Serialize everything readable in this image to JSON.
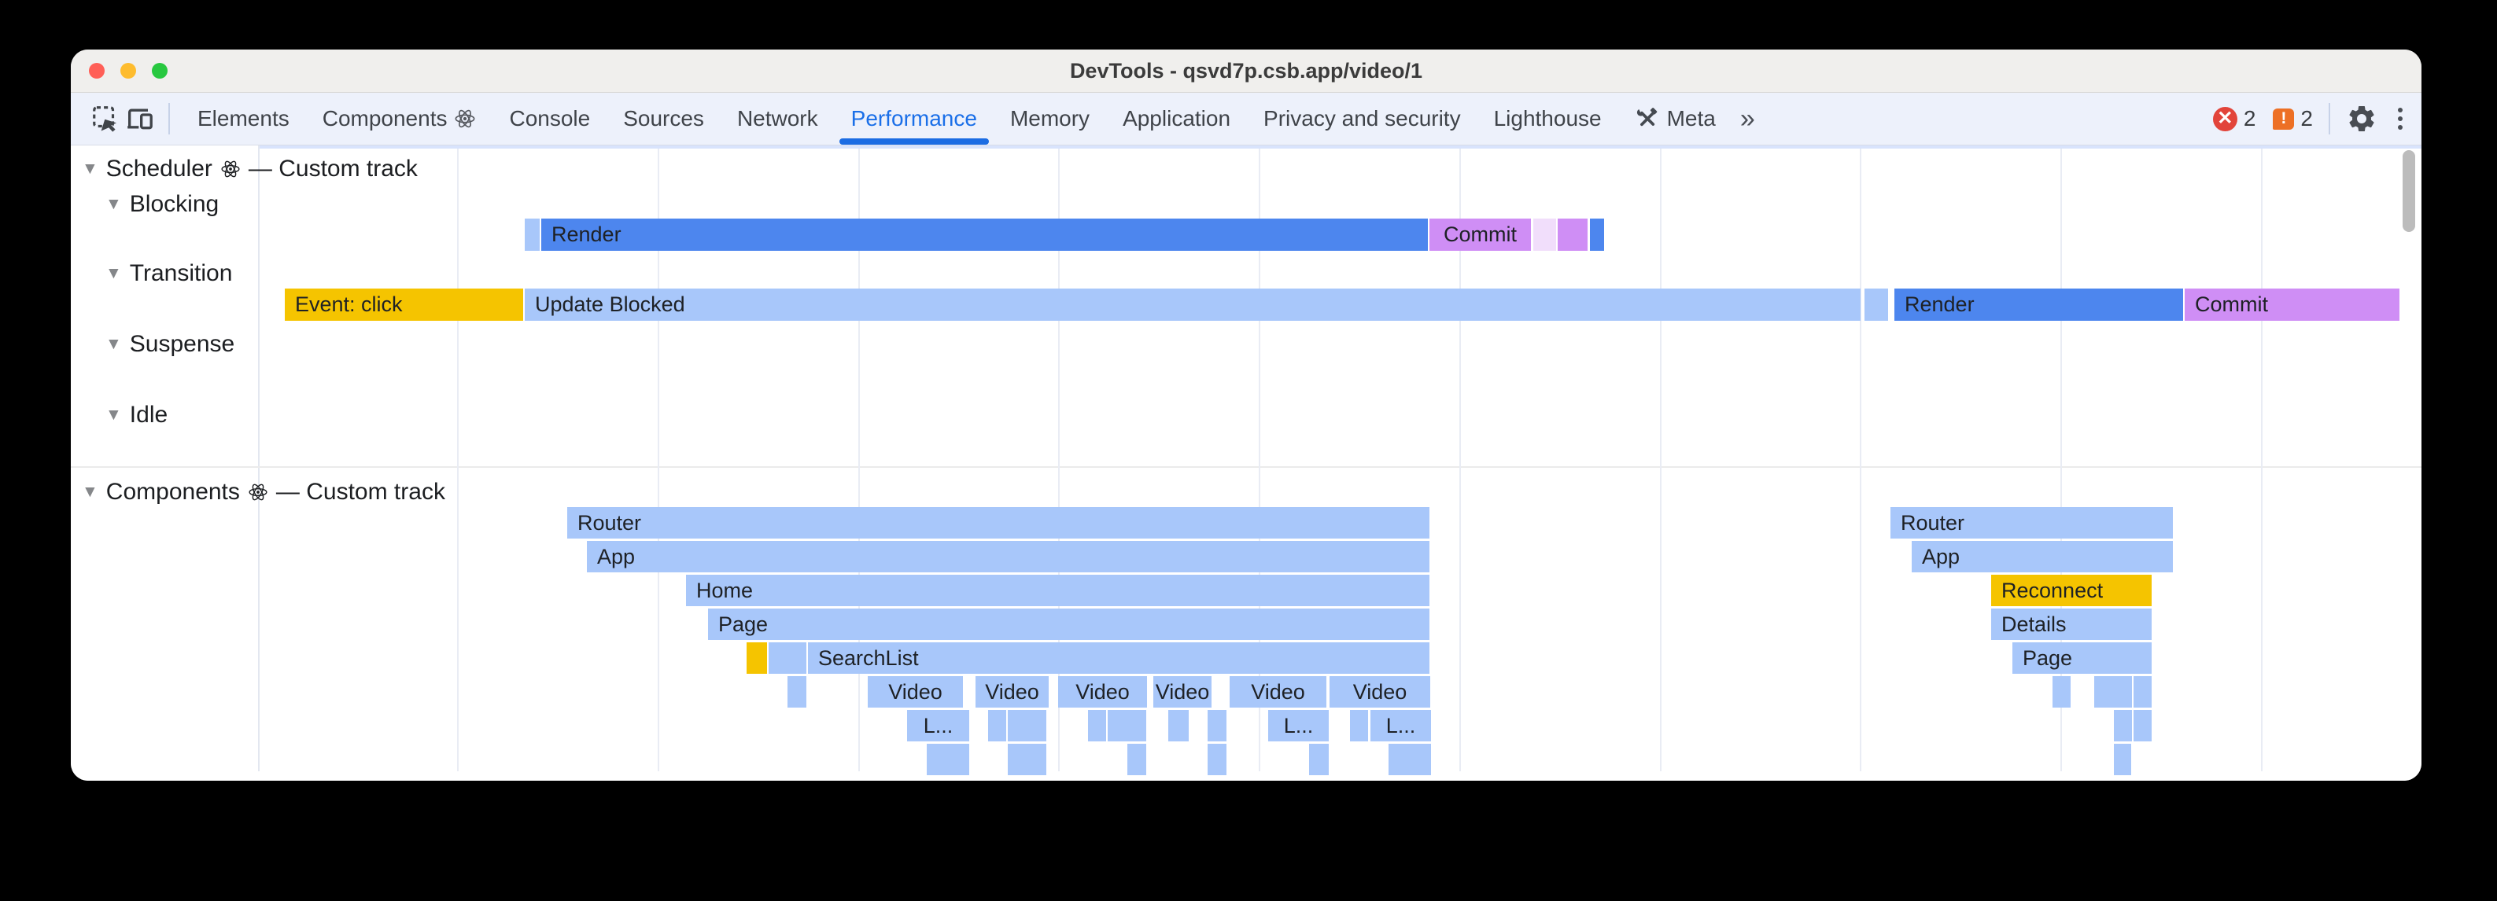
{
  "window": {
    "title": "DevTools - qsvd7p.csb.app/video/1"
  },
  "traffic_lights": {
    "close": "#ff5f57",
    "minimize": "#febc2e",
    "zoom": "#28c840"
  },
  "tabbar": {
    "tabs": [
      {
        "label": "Elements"
      },
      {
        "label": "Components",
        "atom": true
      },
      {
        "label": "Console"
      },
      {
        "label": "Sources"
      },
      {
        "label": "Network"
      },
      {
        "label": "Performance",
        "active": true
      },
      {
        "label": "Memory"
      },
      {
        "label": "Application"
      },
      {
        "label": "Privacy and security"
      },
      {
        "label": "Lighthouse"
      },
      {
        "label": "Meta",
        "tools_icon": true
      }
    ],
    "overflow_chevron": "»",
    "error_count": "2",
    "warning_count": "2"
  },
  "tracks": {
    "scheduler": {
      "triangle": "▼",
      "label": "Scheduler",
      "suffix": "— Custom track"
    },
    "scheduler_groups": [
      {
        "triangle": "▼",
        "label": "Blocking"
      },
      {
        "triangle": "▼",
        "label": "Transition"
      },
      {
        "triangle": "▼",
        "label": "Suspense"
      },
      {
        "triangle": "▼",
        "label": "Idle"
      }
    ],
    "components": {
      "triangle": "▼",
      "label": "Components",
      "suffix": "— Custom track"
    }
  },
  "palette": {
    "lightblue": "#a8c7fa",
    "blue": "#4d86ee",
    "yellow": "#f5c400",
    "violet": "#cf8ef5",
    "paleviolet": "#f1defb",
    "active_tab": "#1a6fe8",
    "error_red": "#e2443a",
    "warning_orange": "#ed7025"
  },
  "flame": {
    "gridlines": [
      491,
      746,
      1001,
      1255,
      1510,
      1765,
      2020,
      2274,
      2529,
      2784
    ],
    "bars": [
      [
        "b",
        577,
        19,
        "lightblue",
        ""
      ],
      [
        "b",
        598,
        1127,
        "blue",
        "Render"
      ],
      [
        "b",
        1727,
        129,
        "violet",
        "Commit"
      ],
      [
        "b",
        1859,
        29,
        "paleviolet",
        ""
      ],
      [
        "b",
        1890,
        38,
        "violet",
        ""
      ],
      [
        "b",
        1931,
        18,
        "blue",
        ""
      ],
      [
        "t",
        272,
        303,
        "yellow",
        "Event: click"
      ],
      [
        "t",
        577,
        1698,
        "lightblue",
        "Update Blocked"
      ],
      [
        "t",
        2280,
        30,
        "lightblue",
        ""
      ],
      [
        "t",
        2318,
        367,
        "blue",
        "Render"
      ],
      [
        "t",
        2687,
        273,
        "violet",
        "Commit"
      ],
      [
        "c1",
        631,
        1096,
        "lightblue",
        "Router"
      ],
      [
        "c1",
        2313,
        359,
        "lightblue",
        "Router"
      ],
      [
        "c2",
        656,
        1071,
        "lightblue",
        "App"
      ],
      [
        "c2",
        2340,
        332,
        "lightblue",
        "App"
      ],
      [
        "c3",
        782,
        945,
        "lightblue",
        "Home"
      ],
      [
        "c3",
        2441,
        204,
        "yellow",
        "Reconnect"
      ],
      [
        "c4",
        810,
        917,
        "lightblue",
        "Page"
      ],
      [
        "c4",
        2441,
        204,
        "lightblue",
        "Details"
      ],
      [
        "c5",
        859,
        26,
        "yellow",
        ""
      ],
      [
        "c5",
        887,
        48,
        "lightblue",
        ""
      ],
      [
        "c5",
        937,
        790,
        "lightblue",
        "SearchList"
      ],
      [
        "c5",
        2468,
        177,
        "lightblue",
        "Page"
      ],
      [
        "c6",
        911,
        24,
        "lightblue",
        ""
      ],
      [
        "c6",
        1013,
        121,
        "lightblue",
        "Video"
      ],
      [
        "c6",
        1150,
        93,
        "lightblue",
        "Video"
      ],
      [
        "c6",
        1255,
        113,
        "lightblue",
        "Video"
      ],
      [
        "c6",
        1376,
        74,
        "lightblue",
        "Video"
      ],
      [
        "c6",
        1473,
        123,
        "lightblue",
        "Video"
      ],
      [
        "c6",
        1600,
        128,
        "lightblue",
        "Video"
      ],
      [
        "c6",
        2519,
        23,
        "lightblue",
        ""
      ],
      [
        "c6",
        2572,
        48,
        "lightblue",
        ""
      ],
      [
        "c6",
        2622,
        23,
        "lightblue",
        ""
      ],
      [
        "c7",
        1063,
        79,
        "lightblue",
        "L..."
      ],
      [
        "c7",
        1166,
        23,
        "lightblue",
        ""
      ],
      [
        "c7",
        1191,
        49,
        "lightblue",
        ""
      ],
      [
        "c7",
        1293,
        23,
        "lightblue",
        ""
      ],
      [
        "c7",
        1318,
        49,
        "lightblue",
        ""
      ],
      [
        "c7",
        1395,
        26,
        "lightblue",
        ""
      ],
      [
        "c7",
        1445,
        24,
        "lightblue",
        ""
      ],
      [
        "c7",
        1522,
        77,
        "lightblue",
        "L..."
      ],
      [
        "c7",
        1626,
        23,
        "lightblue",
        ""
      ],
      [
        "c7",
        1652,
        77,
        "lightblue",
        "L..."
      ],
      [
        "c7",
        2597,
        23,
        "lightblue",
        ""
      ],
      [
        "c7",
        2622,
        23,
        "lightblue",
        ""
      ],
      [
        "c8",
        1088,
        54,
        "lightblue",
        ""
      ],
      [
        "c8",
        1191,
        49,
        "lightblue",
        ""
      ],
      [
        "c8",
        1343,
        24,
        "lightblue",
        ""
      ],
      [
        "c8",
        1445,
        24,
        "lightblue",
        ""
      ],
      [
        "c8",
        1574,
        25,
        "lightblue",
        ""
      ],
      [
        "c8",
        1675,
        54,
        "lightblue",
        ""
      ],
      [
        "c8",
        2597,
        22,
        "lightblue",
        ""
      ]
    ]
  }
}
